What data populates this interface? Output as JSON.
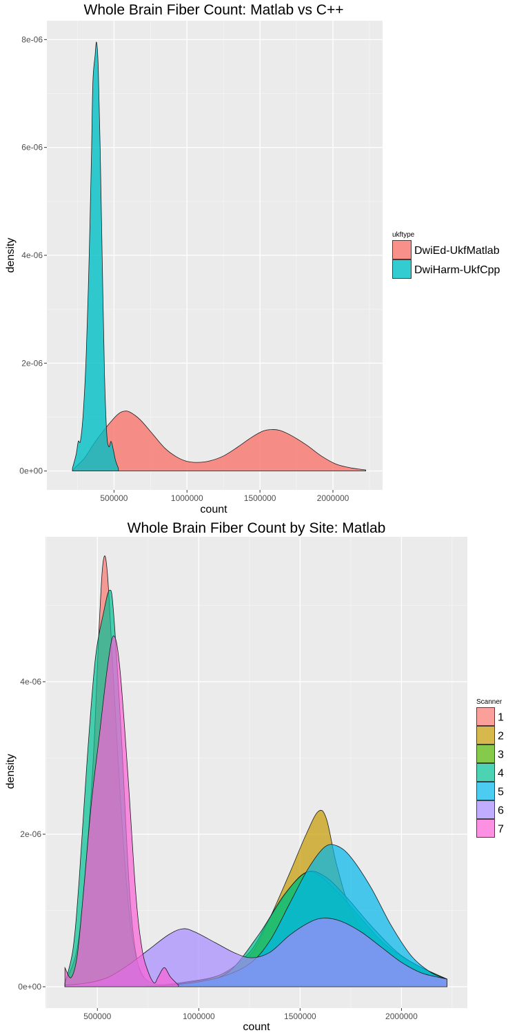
{
  "chart_data": [
    {
      "type": "area",
      "subtype": "density",
      "title": "Whole Brain Fiber Count: Matlab vs C++",
      "xlabel": "count",
      "ylabel": "density",
      "xlim": [
        40000,
        2340000
      ],
      "ylim": [
        -3.5e-07,
        8.35e-06
      ],
      "x_ticks": [
        500000,
        1000000,
        1500000,
        2000000
      ],
      "x_tick_labels": [
        "500000",
        "1000000",
        "1500000",
        "2000000"
      ],
      "y_ticks": [
        0,
        2e-06,
        4e-06,
        6e-06,
        8e-06
      ],
      "y_tick_labels": [
        "0e+00",
        "2e-06",
        "4e-06",
        "6e-06",
        "8e-06"
      ],
      "grid": true,
      "legend": {
        "title": "ukftype",
        "position": "right"
      },
      "series": [
        {
          "name": "DwiEd-UkfMatlab",
          "color": "#F8766D",
          "points": [
            [
              215000,
              1e-08
            ],
            [
              240000,
              8e-08
            ],
            [
              300000,
              2.5e-07
            ],
            [
              360000,
              5e-07
            ],
            [
              420000,
              7.2e-07
            ],
            [
              480000,
              9.2e-07
            ],
            [
              530000,
              1.06e-06
            ],
            [
              570000,
              1.11e-06
            ],
            [
              610000,
              1.09e-06
            ],
            [
              680000,
              9.5e-07
            ],
            [
              760000,
              7e-07
            ],
            [
              850000,
              4.2e-07
            ],
            [
              930000,
              2.6e-07
            ],
            [
              1000000,
              1.8e-07
            ],
            [
              1080000,
              1.6e-07
            ],
            [
              1160000,
              1.9e-07
            ],
            [
              1250000,
              2.8e-07
            ],
            [
              1350000,
              4.5e-07
            ],
            [
              1440000,
              6.2e-07
            ],
            [
              1520000,
              7.4e-07
            ],
            [
              1580000,
              7.7e-07
            ],
            [
              1640000,
              7.5e-07
            ],
            [
              1720000,
              6.5e-07
            ],
            [
              1820000,
              4.8e-07
            ],
            [
              1920000,
              2.8e-07
            ],
            [
              2020000,
              1.3e-07
            ],
            [
              2120000,
              6e-08
            ],
            [
              2225000,
              2e-08
            ]
          ]
        },
        {
          "name": "DwiHarm-UkfCpp",
          "color": "#00BFC4",
          "points": [
            [
              215000,
              5e-08
            ],
            [
              240000,
              3e-07
            ],
            [
              255000,
              5.5e-07
            ],
            [
              270000,
              5.6e-07
            ],
            [
              290000,
              1.1e-06
            ],
            [
              310000,
              2.2e-06
            ],
            [
              330000,
              4e-06
            ],
            [
              345000,
              5.8e-06
            ],
            [
              355000,
              7.2e-06
            ],
            [
              370000,
              7.7e-06
            ],
            [
              380000,
              7.95e-06
            ],
            [
              392000,
              7.5e-06
            ],
            [
              405000,
              6e-06
            ],
            [
              420000,
              3.8e-06
            ],
            [
              435000,
              1.8e-06
            ],
            [
              450000,
              7e-07
            ],
            [
              465000,
              4.5e-07
            ],
            [
              480000,
              5.5e-07
            ],
            [
              495000,
              4e-07
            ],
            [
              510000,
              2e-07
            ],
            [
              530000,
              5e-08
            ]
          ]
        }
      ]
    },
    {
      "type": "area",
      "subtype": "density",
      "title": "Whole Brain Fiber Count by Site: Matlab",
      "xlabel": "count",
      "ylabel": "density",
      "xlim": [
        244000,
        2325000
      ],
      "ylim": [
        -2.8e-07,
        5.9e-06
      ],
      "x_ticks": [
        500000,
        1000000,
        1500000,
        2000000
      ],
      "x_tick_labels": [
        "500000",
        "1000000",
        "1500000",
        "2000000"
      ],
      "y_ticks": [
        0,
        2e-06,
        4e-06
      ],
      "y_tick_labels": [
        "0e+00",
        "2e-06",
        "4e-06"
      ],
      "grid": true,
      "legend": {
        "title": "Scanner",
        "position": "right"
      },
      "series": [
        {
          "name": "1",
          "color": "#F8766D",
          "points": [
            [
              340000,
              5e-08
            ],
            [
              400000,
              5e-07
            ],
            [
              440000,
              1.5e-06
            ],
            [
              480000,
              3e-06
            ],
            [
              510000,
              4.8e-06
            ],
            [
              530000,
              5.6e-06
            ],
            [
              550000,
              5.4e-06
            ],
            [
              580000,
              4e-06
            ],
            [
              620000,
              2.2e-06
            ],
            [
              660000,
              9e-07
            ],
            [
              700000,
              3e-07
            ],
            [
              750000,
              5e-08
            ]
          ]
        },
        {
          "name": "2",
          "color": "#C49A00",
          "points": [
            [
              720000,
              0.0
            ],
            [
              900000,
              5e-08
            ],
            [
              1100000,
              1.5e-07
            ],
            [
              1250000,
              4e-07
            ],
            [
              1350000,
              9e-07
            ],
            [
              1450000,
              1.5e-06
            ],
            [
              1530000,
              2e-06
            ],
            [
              1590000,
              2.3e-06
            ],
            [
              1630000,
              2.2e-06
            ],
            [
              1680000,
              1.6e-06
            ],
            [
              1750000,
              1e-06
            ],
            [
              1850000,
              6e-07
            ],
            [
              1950000,
              4e-07
            ],
            [
              2050000,
              2.5e-07
            ],
            [
              2150000,
              1.5e-07
            ],
            [
              2225000,
              1e-07
            ]
          ]
        },
        {
          "name": "3",
          "color": "#53B400",
          "points": [
            [
              720000,
              0.0
            ],
            [
              900000,
              4e-08
            ],
            [
              1100000,
              1.5e-07
            ],
            [
              1250000,
              4.5e-07
            ],
            [
              1350000,
              9e-07
            ],
            [
              1450000,
              1.3e-06
            ],
            [
              1530000,
              1.5e-06
            ],
            [
              1600000,
              1.45e-06
            ],
            [
              1700000,
              1.2e-06
            ],
            [
              1800000,
              9e-07
            ],
            [
              1900000,
              6e-07
            ],
            [
              2000000,
              4e-07
            ],
            [
              2100000,
              2.5e-07
            ],
            [
              2225000,
              1e-07
            ]
          ]
        },
        {
          "name": "4",
          "color": "#00C094",
          "points": [
            [
              340000,
              5e-08
            ],
            [
              380000,
              5e-07
            ],
            [
              410000,
              1.4e-06
            ],
            [
              450000,
              3e-06
            ],
            [
              490000,
              4.3e-06
            ],
            [
              530000,
              4.9e-06
            ],
            [
              560000,
              5.2e-06
            ],
            [
              580000,
              4.9e-06
            ],
            [
              620000,
              3.2e-06
            ],
            [
              660000,
              1.2e-06
            ],
            [
              700000,
              3e-07
            ],
            [
              760000,
              6e-08
            ],
            [
              850000,
              3e-08
            ],
            [
              1000000,
              6e-08
            ],
            [
              1150000,
              2e-07
            ],
            [
              1300000,
              7e-07
            ],
            [
              1420000,
              1.2e-06
            ],
            [
              1530000,
              1.5e-06
            ],
            [
              1620000,
              1.45e-06
            ],
            [
              1720000,
              1.2e-06
            ],
            [
              1850000,
              8e-07
            ],
            [
              1980000,
              4.5e-07
            ],
            [
              2100000,
              2.5e-07
            ],
            [
              2225000,
              1e-07
            ]
          ]
        },
        {
          "name": "5",
          "color": "#00B6EB",
          "points": [
            [
              720000,
              0.0
            ],
            [
              900000,
              3e-08
            ],
            [
              1100000,
              1.2e-07
            ],
            [
              1250000,
              3e-07
            ],
            [
              1350000,
              6e-07
            ],
            [
              1450000,
              1.1e-06
            ],
            [
              1540000,
              1.55e-06
            ],
            [
              1620000,
              1.83e-06
            ],
            [
              1680000,
              1.85e-06
            ],
            [
              1750000,
              1.7e-06
            ],
            [
              1850000,
              1.3e-06
            ],
            [
              1950000,
              8e-07
            ],
            [
              2050000,
              4e-07
            ],
            [
              2150000,
              1.8e-07
            ],
            [
              2225000,
              1e-07
            ]
          ]
        },
        {
          "name": "6",
          "color": "#A58AFF",
          "points": [
            [
              340000,
              2e-08
            ],
            [
              450000,
              5e-08
            ],
            [
              550000,
              1.2e-07
            ],
            [
              650000,
              2.8e-07
            ],
            [
              750000,
              4.8e-07
            ],
            [
              850000,
              6.8e-07
            ],
            [
              920000,
              7.6e-07
            ],
            [
              980000,
              7.2e-07
            ],
            [
              1080000,
              5.8e-07
            ],
            [
              1180000,
              4.4e-07
            ],
            [
              1260000,
              3.8e-07
            ],
            [
              1350000,
              4.5e-07
            ],
            [
              1450000,
              6.8e-07
            ],
            [
              1550000,
              8.5e-07
            ],
            [
              1620000,
              9e-07
            ],
            [
              1700000,
              8.6e-07
            ],
            [
              1800000,
              7.2e-07
            ],
            [
              1900000,
              5.2e-07
            ],
            [
              2000000,
              3.2e-07
            ],
            [
              2100000,
              1.8e-07
            ],
            [
              2225000,
              1e-07
            ]
          ]
        },
        {
          "name": "7",
          "color": "#FB61D7",
          "points": [
            [
              340000,
              2.5e-07
            ],
            [
              370000,
              1.2e-07
            ],
            [
              400000,
              4e-07
            ],
            [
              430000,
              1.2e-06
            ],
            [
              470000,
              2.4e-06
            ],
            [
              510000,
              3.3e-06
            ],
            [
              550000,
              4.2e-06
            ],
            [
              580000,
              4.6e-06
            ],
            [
              610000,
              4.2e-06
            ],
            [
              650000,
              2.8e-06
            ],
            [
              690000,
              1.2e-06
            ],
            [
              720000,
              5e-07
            ],
            [
              750000,
              2e-07
            ],
            [
              780000,
              5e-08
            ],
            [
              800000,
              1.3e-07
            ],
            [
              830000,
              2.5e-07
            ],
            [
              860000,
              1.3e-07
            ],
            [
              900000,
              2e-08
            ]
          ]
        }
      ]
    }
  ]
}
